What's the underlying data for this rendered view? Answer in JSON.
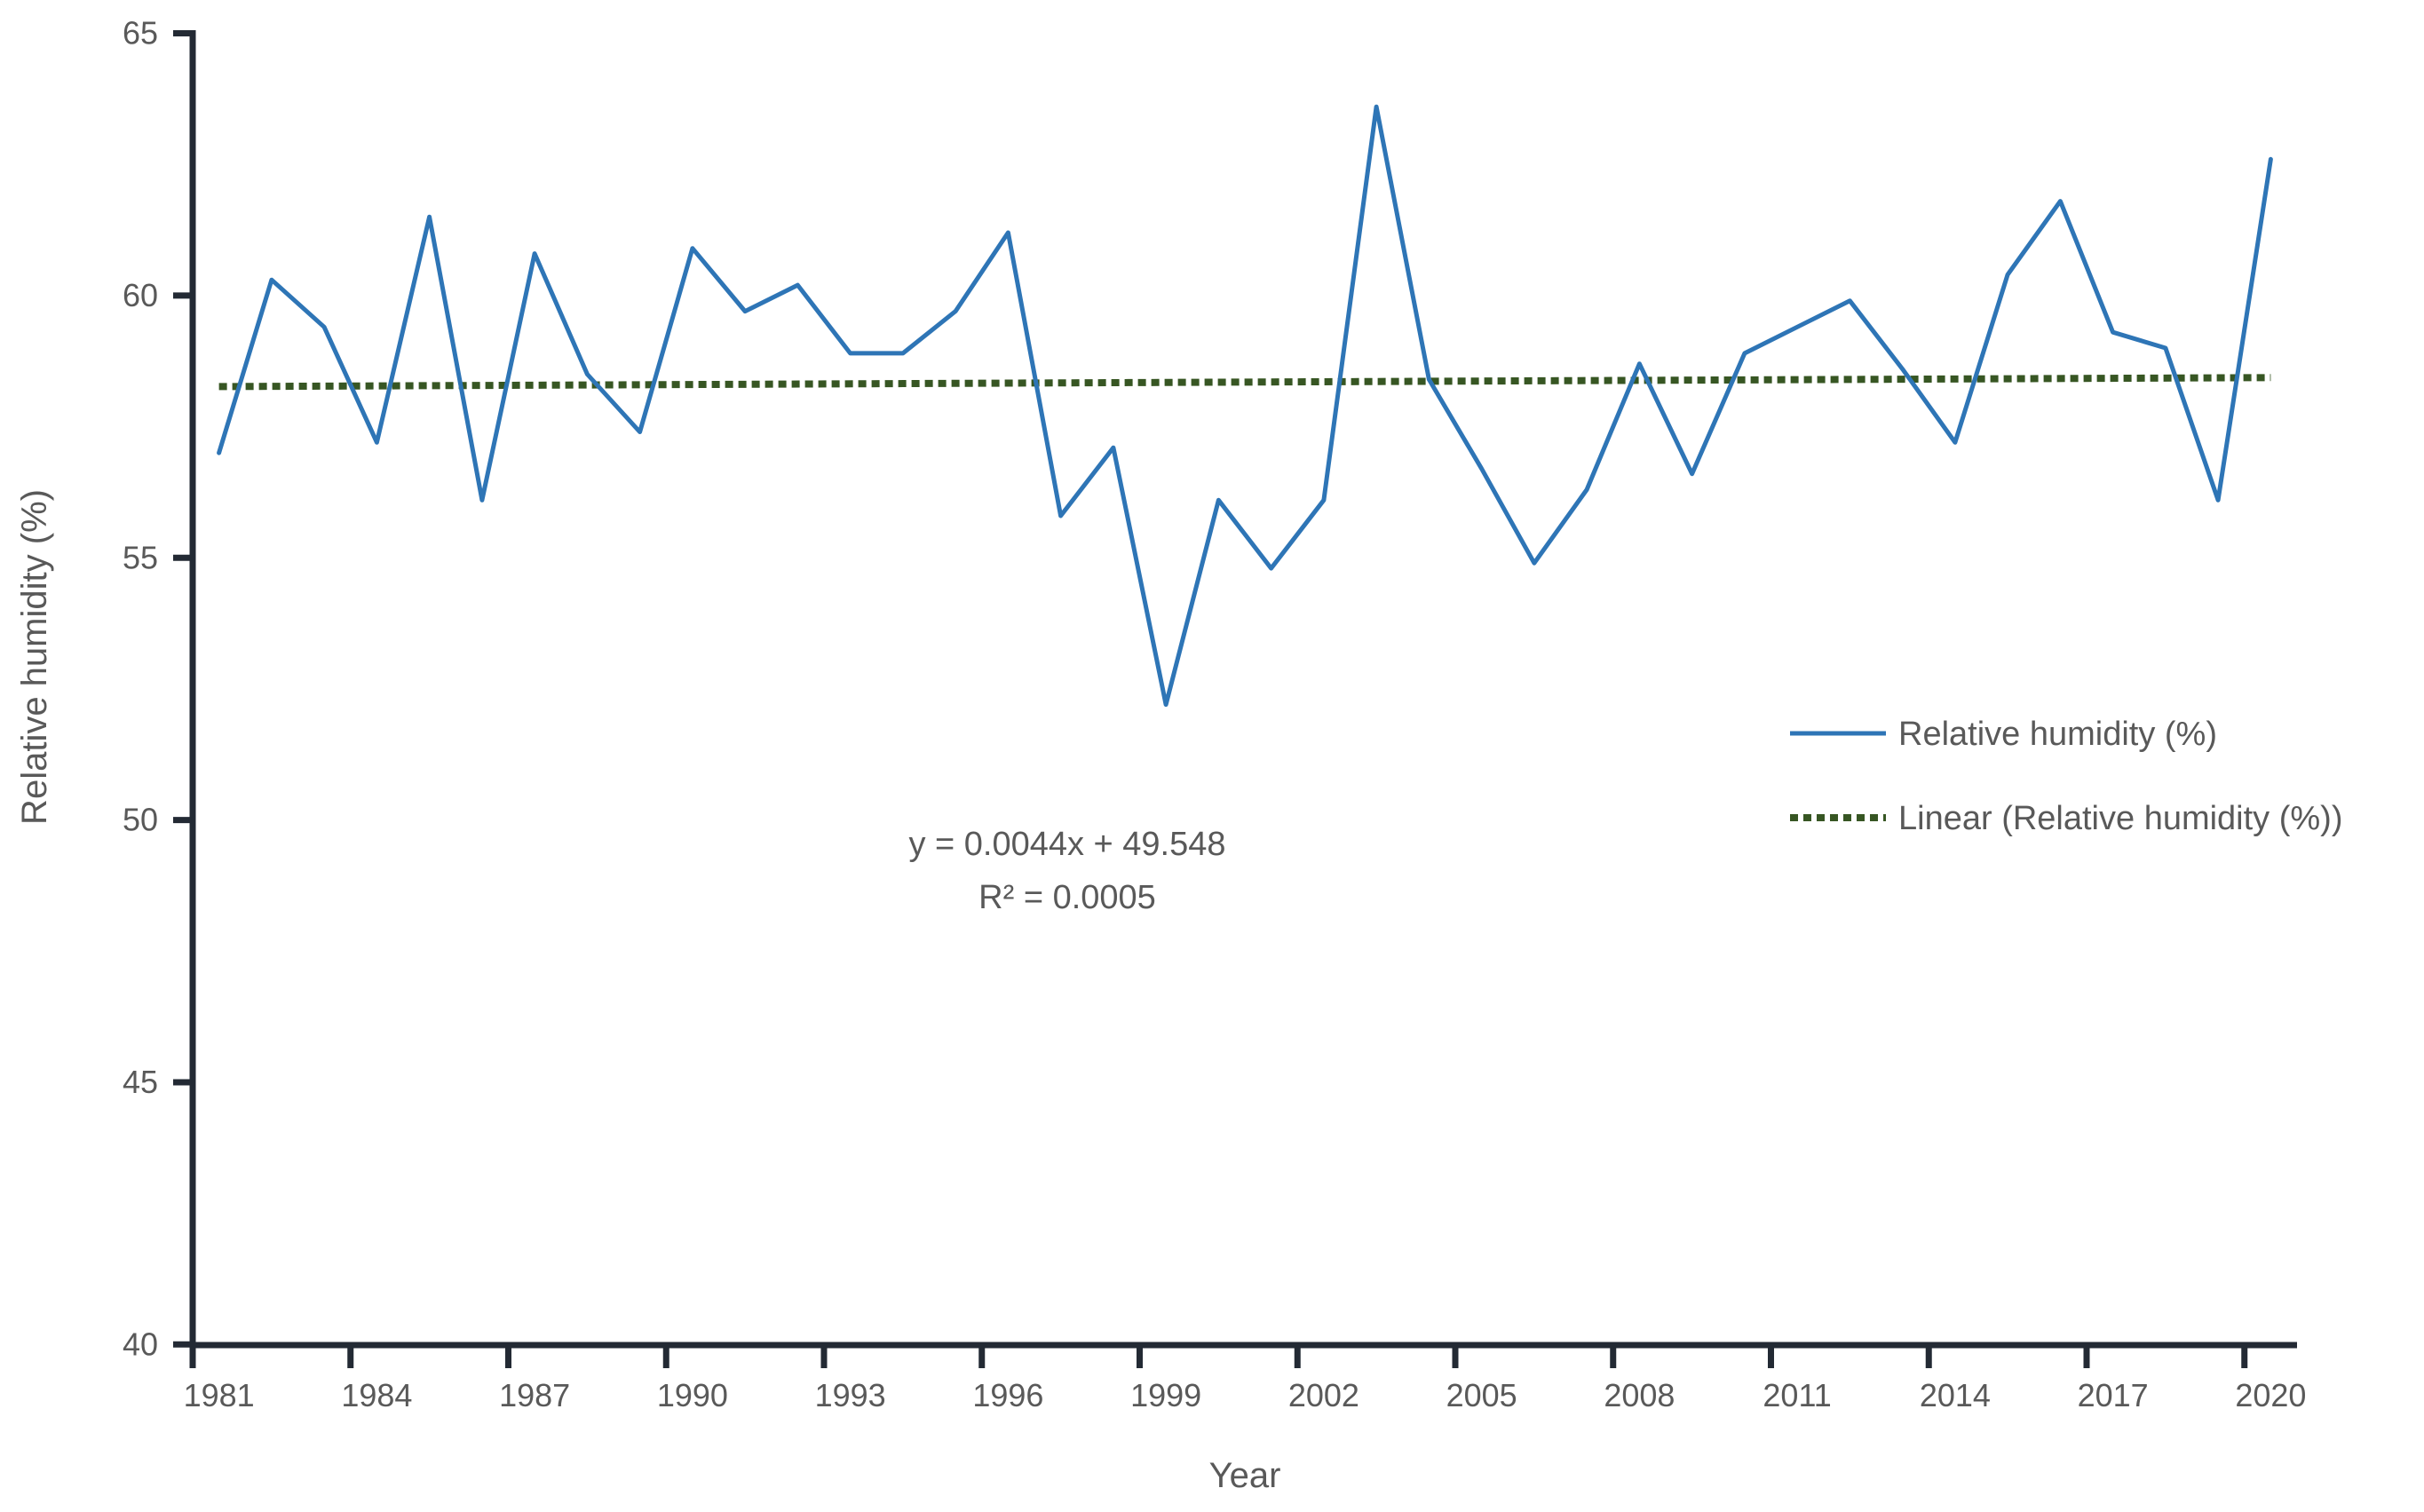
{
  "chart_data": {
    "type": "line",
    "title": "",
    "xlabel": "Year",
    "ylabel": "Relative humidity (%)",
    "categories": [
      1981,
      1982,
      1983,
      1984,
      1985,
      1986,
      1987,
      1988,
      1989,
      1990,
      1991,
      1992,
      1993,
      1994,
      1995,
      1996,
      1997,
      1998,
      1999,
      2000,
      2001,
      2002,
      2003,
      2004,
      2005,
      2006,
      2007,
      2008,
      2009,
      2010,
      2011,
      2012,
      2013,
      2014,
      2015,
      2016,
      2017,
      2018,
      2019,
      2020
    ],
    "series": [
      {
        "name": "Relative humidity (%)",
        "values": [
          57.0,
          60.3,
          59.4,
          57.2,
          61.5,
          56.1,
          60.8,
          58.5,
          57.4,
          60.9,
          59.7,
          60.2,
          58.9,
          58.9,
          59.7,
          61.2,
          55.8,
          57.1,
          52.2,
          56.1,
          54.8,
          56.1,
          63.6,
          58.4,
          56.7,
          54.9,
          56.3,
          58.7,
          56.6,
          58.9,
          59.4,
          59.9,
          58.6,
          57.2,
          60.4,
          61.8,
          59.3,
          59.0,
          56.1,
          62.6
        ]
      }
    ],
    "trendline": {
      "name": "Linear (Relative humidity (%))",
      "slope": 0.0044,
      "intercept": 49.548,
      "equation_text": "y = 0.0044x + 49.548",
      "r2_text": "R² = 0.0005"
    },
    "ylim": [
      40,
      65
    ],
    "y_ticks": [
      40,
      45,
      50,
      55,
      60,
      65
    ],
    "x_tick_labels": [
      "1981",
      "1984",
      "1987",
      "1990",
      "1993",
      "1996",
      "1999",
      "2002",
      "2005",
      "2008",
      "2011",
      "2014",
      "2017",
      "2020"
    ],
    "x_tick_step_years": 3,
    "grid": "off",
    "legend_position": "right-middle",
    "legend": [
      {
        "label": "Relative humidity (%)",
        "swatch": "solid-line"
      },
      {
        "label": "Linear (Relative humidity (%))",
        "swatch": "dotted-line"
      }
    ],
    "colors": {
      "series_line": "#2E75B6",
      "trend_line": "#375623",
      "axis_line": "#232A34",
      "text": "#595959",
      "background": "#FFFFFF"
    }
  }
}
